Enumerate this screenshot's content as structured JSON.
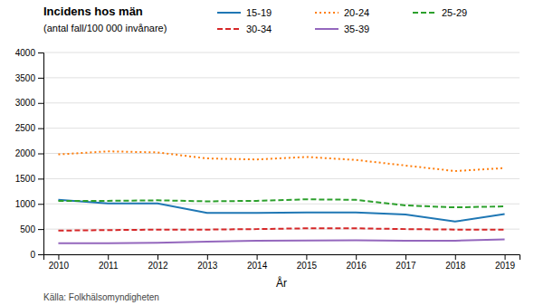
{
  "chart_data": {
    "type": "line",
    "title": "Incidens hos män",
    "subtitle": "(antal fall/100 000 invånare)",
    "xlabel": "År",
    "source": "Källa: Folkhälsomyndigheten",
    "x": [
      2010,
      2011,
      2012,
      2013,
      2014,
      2015,
      2016,
      2017,
      2018,
      2019
    ],
    "xlim": [
      2009.7,
      2019.3
    ],
    "xticks": [
      2010,
      2011,
      2012,
      2013,
      2014,
      2015,
      2016,
      2017,
      2018,
      2019
    ],
    "ylim": [
      0,
      4000
    ],
    "yticks": [
      0,
      500,
      1000,
      1500,
      2000,
      2500,
      3000,
      3500,
      4000
    ],
    "grid": true,
    "legend": "top",
    "series": [
      {
        "name": "15-19",
        "line_style": "solid",
        "values": [
          1080,
          1010,
          1010,
          820,
          820,
          830,
          830,
          790,
          650,
          800
        ]
      },
      {
        "name": "20-24",
        "line_style": "dotted",
        "values": [
          1980,
          2040,
          2020,
          1900,
          1880,
          1930,
          1870,
          1760,
          1650,
          1710
        ]
      },
      {
        "name": "25-29",
        "line_style": "dashed",
        "values": [
          1060,
          1060,
          1070,
          1050,
          1060,
          1090,
          1080,
          970,
          930,
          950
        ]
      },
      {
        "name": "30-34",
        "line_style": "dashed",
        "values": [
          470,
          480,
          490,
          490,
          500,
          515,
          515,
          500,
          490,
          490
        ]
      },
      {
        "name": "35-39",
        "line_style": "solid",
        "values": [
          220,
          220,
          230,
          250,
          270,
          275,
          280,
          270,
          270,
          295
        ]
      }
    ]
  }
}
